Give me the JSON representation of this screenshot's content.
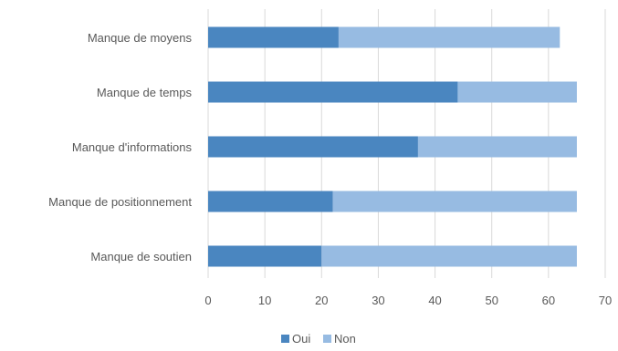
{
  "chart_data": {
    "type": "bar",
    "orientation": "horizontal",
    "stacked": true,
    "categories": [
      "Manque de moyens",
      "Manque de temps",
      "Manque d'informations",
      "Manque de positionnement",
      "Manque de soutien"
    ],
    "series": [
      {
        "name": "Oui",
        "values": [
          23,
          44,
          37,
          22,
          20
        ],
        "color": "#4a86c0"
      },
      {
        "name": "Non",
        "values": [
          39,
          21,
          28,
          43,
          45
        ],
        "color": "#97bbe2"
      }
    ],
    "xlim": [
      0,
      70
    ],
    "xticks": [
      "0",
      "10",
      "20",
      "30",
      "40",
      "50",
      "60",
      "70"
    ],
    "grid": true,
    "legend_position": "bottom"
  }
}
